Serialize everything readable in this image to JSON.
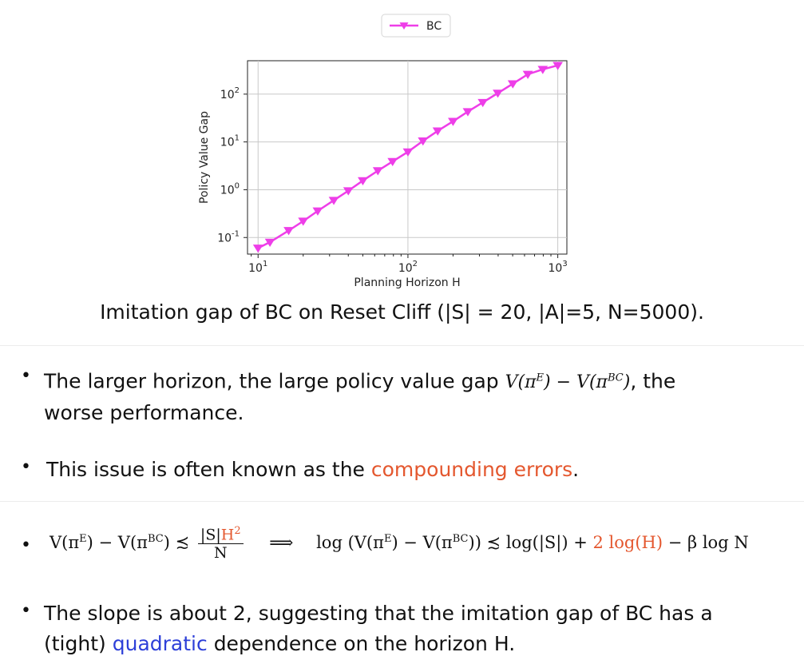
{
  "chart_data": {
    "type": "line",
    "title": "",
    "xlabel": "Planning Horizon H",
    "ylabel": "Policy Value Gap",
    "xscale": "log",
    "yscale": "log",
    "xlim": [
      8.5,
      1150
    ],
    "ylim": [
      0.045,
      500
    ],
    "x_ticks": [
      {
        "value": 10,
        "label": "10^1"
      },
      {
        "value": 100,
        "label": "10^2"
      },
      {
        "value": 1000,
        "label": "10^3"
      }
    ],
    "y_ticks": [
      {
        "value": 0.1,
        "label": "10^-1"
      },
      {
        "value": 1,
        "label": "10^0"
      },
      {
        "value": 10,
        "label": "10^1"
      },
      {
        "value": 100,
        "label": "10^2"
      }
    ],
    "grid": true,
    "legend": "top-center",
    "series": [
      {
        "name": "BC",
        "color": "#ee3ee8",
        "marker": "triangle-down",
        "x": [
          10,
          12,
          16,
          20,
          25,
          32,
          40,
          50,
          63,
          79,
          100,
          126,
          158,
          200,
          251,
          316,
          398,
          501,
          631,
          794,
          1000
        ],
        "y": [
          0.06,
          0.08,
          0.14,
          0.22,
          0.36,
          0.6,
          0.95,
          1.55,
          2.5,
          3.9,
          6.2,
          10.5,
          17,
          27,
          43,
          67,
          105,
          165,
          260,
          330,
          400
        ]
      }
    ]
  },
  "caption": "Imitation gap of BC on Reset Cliff (|S| = 20, |A|=5, N=5000).",
  "bullets": {
    "b1_line1_pre": "The larger horizon, the large policy value gap",
    "b1_line1_post": ", the",
    "b1_line2": "worse performance.",
    "b2_pre": "This issue is often known as the",
    "b2_highlight": "compounding errors",
    "b2_post": ".",
    "b4_line1": "The slope is about 2, suggesting that the imitation gap of BC has a",
    "b4_line2_pre": "(tight)",
    "b4_highlight": "quadratic",
    "b4_line2_post": "dependence on the horizon H."
  },
  "formula": {
    "lhs": "V(π",
    "sup_E": "E",
    "mid": ") − V(π",
    "sup_BC": "BC",
    "close": ")",
    "approx": "≾",
    "num_left": "|S|",
    "num_red": "H",
    "num_sup": "2",
    "den": "N",
    "implies": "⟹",
    "log_pre": "log (V(π",
    "log_mid": ") − V(π",
    "log_close": ")) ≾ log(|S|) +",
    "log_red": "2 log(H)",
    "log_post": "− β log N"
  },
  "colors": {
    "accent_red": "#e4572e",
    "accent_blue": "#2d3fd8",
    "series": "#ee3ee8"
  }
}
